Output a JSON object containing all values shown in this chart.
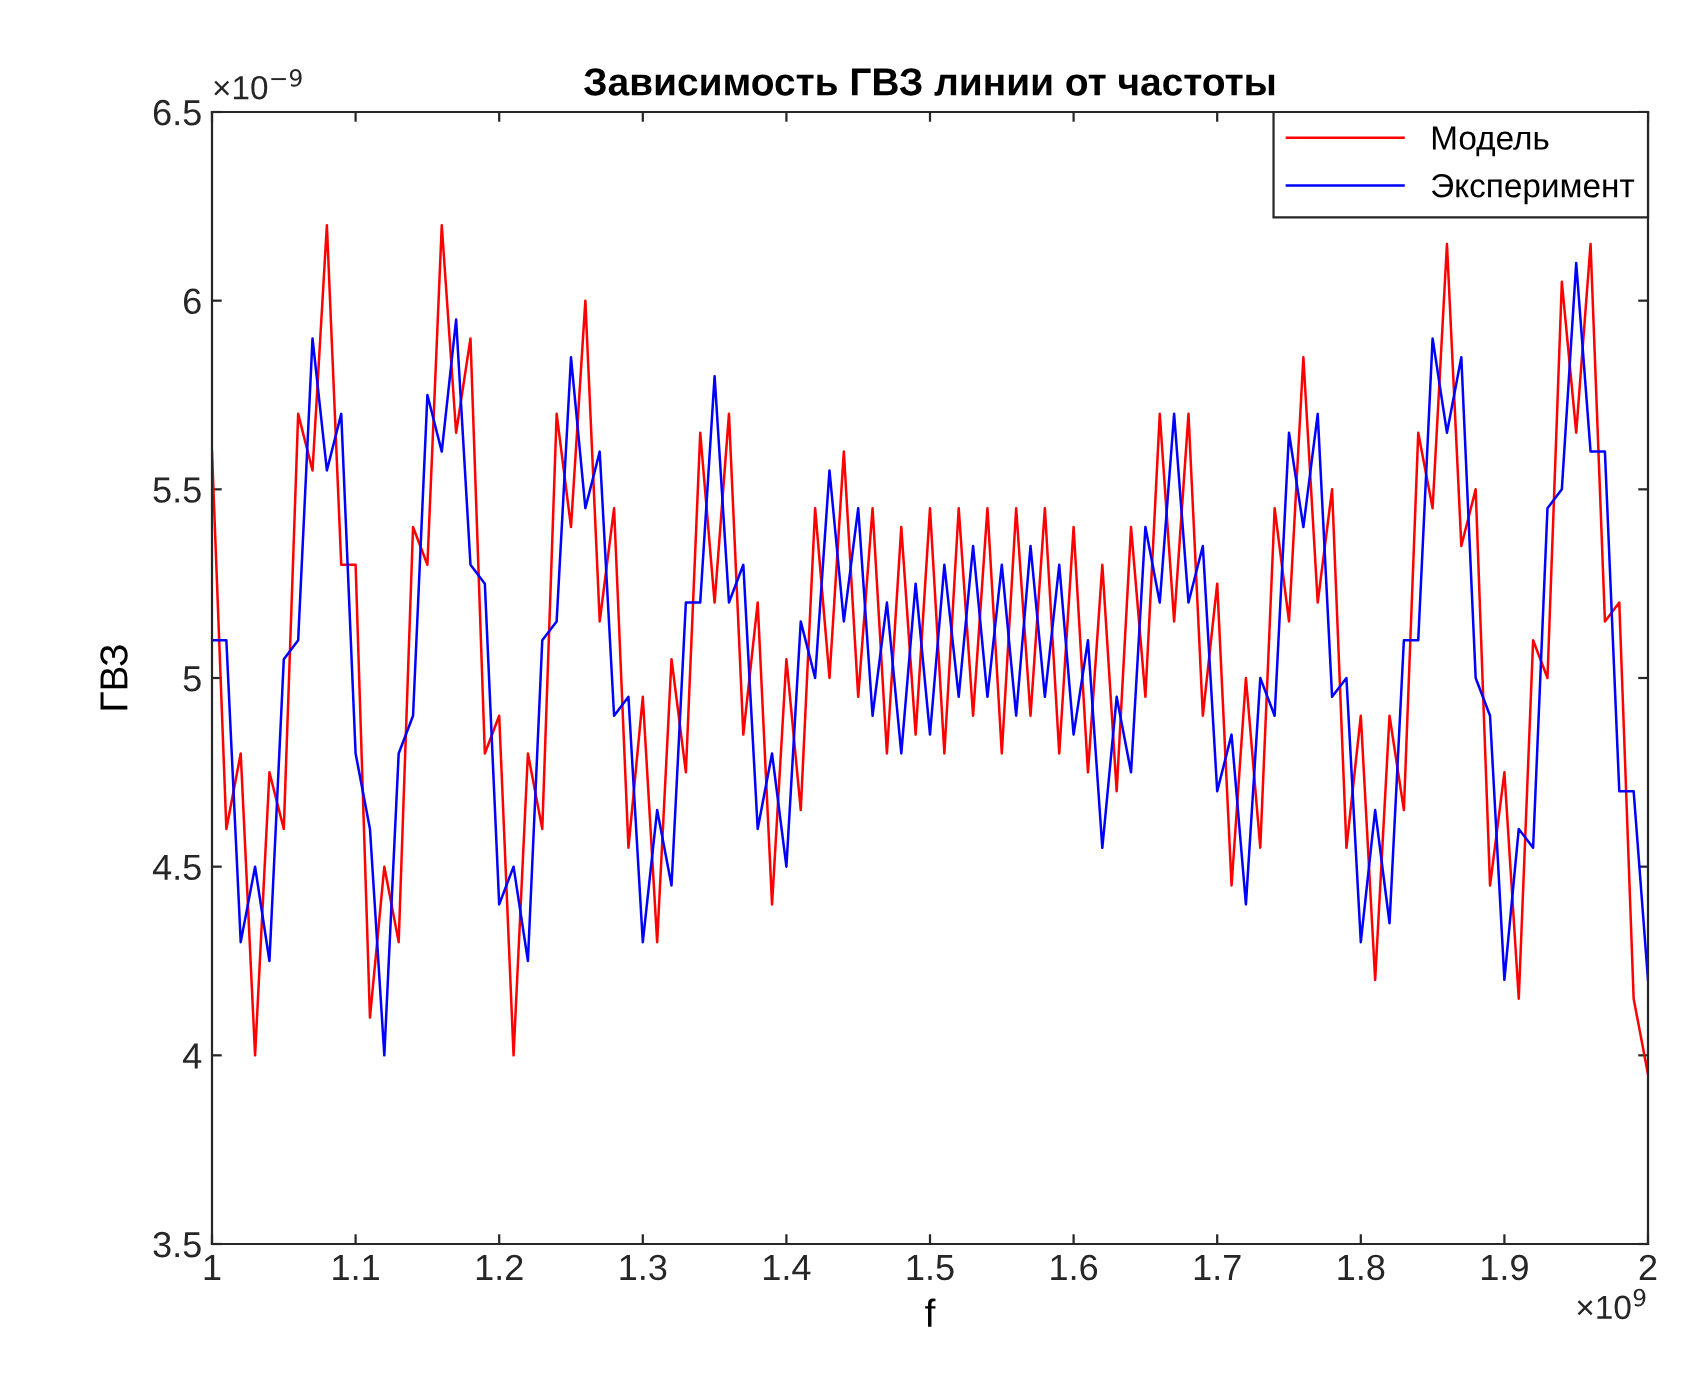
{
  "chart_data": {
    "type": "line",
    "title": "Зависимость ГВЗ линии от частоты",
    "xlabel": "f",
    "ylabel": "ГВЗ",
    "annotations": [
      "×10$^{−9}$",
      "×10$^{9}$"
    ],
    "x": [
      1.0,
      1.01,
      1.02,
      1.03,
      1.04,
      1.05,
      1.06,
      1.07,
      1.08,
      1.09,
      1.1,
      1.11,
      1.12,
      1.13,
      1.14,
      1.15,
      1.16,
      1.17,
      1.18,
      1.19,
      1.2,
      1.21,
      1.22,
      1.23,
      1.24,
      1.25,
      1.26,
      1.27,
      1.28,
      1.29,
      1.3,
      1.31,
      1.32,
      1.33,
      1.34,
      1.35,
      1.36,
      1.37,
      1.38,
      1.39,
      1.4,
      1.41,
      1.42,
      1.43,
      1.44,
      1.45,
      1.46,
      1.47,
      1.48,
      1.49,
      1.5,
      1.51,
      1.52,
      1.53,
      1.54,
      1.55,
      1.56,
      1.57,
      1.58,
      1.59,
      1.6,
      1.61,
      1.62,
      1.63,
      1.64,
      1.65,
      1.66,
      1.67,
      1.68,
      1.69,
      1.7,
      1.71,
      1.72,
      1.73,
      1.74,
      1.75,
      1.76,
      1.77,
      1.78,
      1.79,
      1.8,
      1.81,
      1.82,
      1.83,
      1.84,
      1.85,
      1.86,
      1.87,
      1.88,
      1.89,
      1.9,
      1.91,
      1.92,
      1.93,
      1.94,
      1.95,
      1.96,
      1.97,
      1.98,
      1.99,
      2.0
    ],
    "series": [
      {
        "name": "Модель",
        "color": "#ff0000",
        "values": [
          5.6,
          4.6,
          4.8,
          4.0,
          4.75,
          4.6,
          5.7,
          5.55,
          6.2,
          5.3,
          5.3,
          4.1,
          4.5,
          4.3,
          5.4,
          5.3,
          6.2,
          5.65,
          5.9,
          4.8,
          4.9,
          4.0,
          4.8,
          4.6,
          5.7,
          5.4,
          6.0,
          5.15,
          5.45,
          4.55,
          4.95,
          4.3,
          5.05,
          4.75,
          5.65,
          5.2,
          5.7,
          4.85,
          5.2,
          4.4,
          5.05,
          4.65,
          5.45,
          5.0,
          5.6,
          4.95,
          5.45,
          4.8,
          5.4,
          4.85,
          5.45,
          4.8,
          5.45,
          4.9,
          5.45,
          4.8,
          5.45,
          4.9,
          5.45,
          4.8,
          5.4,
          4.75,
          5.3,
          4.7,
          5.4,
          4.95,
          5.7,
          5.15,
          5.7,
          4.9,
          5.25,
          4.45,
          5.0,
          4.55,
          5.45,
          5.15,
          5.85,
          5.2,
          5.5,
          4.55,
          4.9,
          4.2,
          4.9,
          4.65,
          5.65,
          5.45,
          6.15,
          5.35,
          5.5,
          4.45,
          4.75,
          4.15,
          5.1,
          5.0,
          6.05,
          5.65,
          6.15,
          5.15,
          5.2,
          4.15,
          3.95
        ]
      },
      {
        "name": "Эксперимент",
        "color": "#0000ff",
        "values": [
          5.1,
          5.1,
          4.3,
          4.5,
          4.25,
          5.05,
          5.1,
          5.9,
          5.55,
          5.7,
          4.8,
          4.6,
          4.0,
          4.8,
          4.9,
          5.75,
          5.6,
          5.95,
          5.3,
          5.25,
          4.4,
          4.5,
          4.25,
          5.1,
          5.15,
          5.85,
          5.45,
          5.6,
          4.9,
          4.95,
          4.3,
          4.65,
          4.45,
          5.2,
          5.2,
          5.8,
          5.2,
          5.3,
          4.6,
          4.8,
          4.5,
          5.15,
          5.0,
          5.55,
          5.15,
          5.45,
          4.9,
          5.2,
          4.8,
          5.25,
          4.85,
          5.3,
          4.95,
          5.35,
          4.95,
          5.3,
          4.9,
          5.35,
          4.95,
          5.3,
          4.85,
          5.1,
          4.55,
          4.95,
          4.75,
          5.4,
          5.2,
          5.7,
          5.2,
          5.35,
          4.7,
          4.85,
          4.4,
          5.0,
          4.9,
          5.65,
          5.4,
          5.7,
          4.95,
          5.0,
          4.3,
          4.65,
          4.35,
          5.1,
          5.1,
          5.9,
          5.65,
          5.85,
          5.0,
          4.9,
          4.2,
          4.6,
          4.55,
          5.45,
          5.5,
          6.1,
          5.6,
          5.6,
          4.7,
          4.7,
          4.2
        ]
      }
    ],
    "xlim": [
      1,
      2
    ],
    "xticks": [
      1,
      1.1,
      1.2,
      1.3,
      1.4,
      1.5,
      1.6,
      1.7,
      1.8,
      1.9,
      2
    ],
    "ylim": [
      3.5,
      6.5
    ],
    "yticks": [
      3.5,
      4,
      4.5,
      5,
      5.5,
      6,
      6.5
    ],
    "legend": "top right",
    "line_style": "solid"
  }
}
